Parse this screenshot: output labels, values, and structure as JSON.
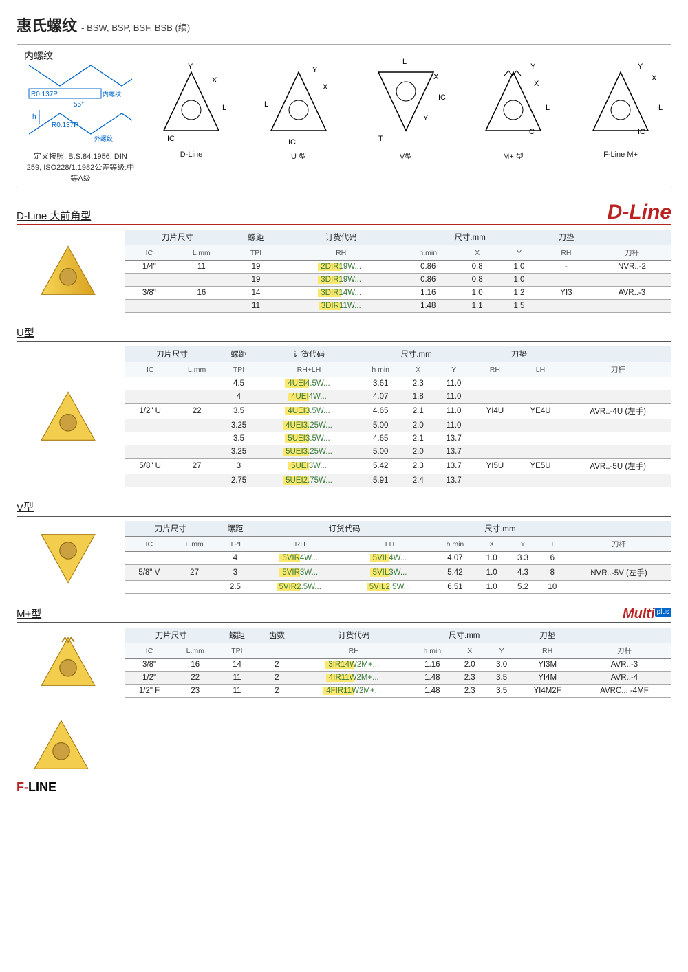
{
  "title": "惠氏螺纹",
  "subtitle": "- BSW, BSP, BSF, BSB (续)",
  "diagram": {
    "header": "内螺纹",
    "profile": {
      "r1": "R0.137P",
      "in": "内螺纹",
      "ang": "55°",
      "r2": "R0.137P",
      "out": "外螺纹",
      "def": "定义按照: B.S.84:1956, DIN 259, ISO228/1:1982公差等级:中等A级"
    },
    "labels": [
      "D-Line",
      "U 型",
      "V型",
      "M+ 型",
      "F-Line M+"
    ]
  },
  "dline": {
    "heading": "D-Line 大前角型",
    "brand": "D-Line",
    "cols1": [
      "刀片尺寸",
      "",
      "螺距",
      "订货代码",
      "",
      "尺寸.mm",
      "",
      "刀垫",
      ""
    ],
    "cols2": [
      "IC",
      "L mm",
      "TPI",
      "RH",
      "h.min",
      "X",
      "Y",
      "RH",
      "刀杆"
    ],
    "rows": [
      {
        "ic": "1/4\"",
        "lmm": "11",
        "tpi": "19",
        "rh": "2DIR19W...",
        "hmin": "0.86",
        "x": "0.8",
        "y": "1.0",
        "pad": "-",
        "bar": "NVR..-2"
      },
      {
        "ic": "",
        "lmm": "",
        "tpi": "19",
        "rh": "3DIR19W...",
        "hmin": "0.86",
        "x": "0.8",
        "y": "1.0",
        "pad": "",
        "bar": ""
      },
      {
        "ic": "3/8\"",
        "lmm": "16",
        "tpi": "14",
        "rh": "3DIR14W...",
        "hmin": "1.16",
        "x": "1.0",
        "y": "1.2",
        "pad": "YI3",
        "bar": "AVR..-3"
      },
      {
        "ic": "",
        "lmm": "",
        "tpi": "11",
        "rh": "3DIR11W...",
        "hmin": "1.48",
        "x": "1.1",
        "y": "1.5",
        "pad": "",
        "bar": ""
      }
    ]
  },
  "utype": {
    "heading": "U型",
    "cols1": [
      "刀片尺寸",
      "",
      "螺距",
      "订货代码",
      "",
      "尺寸.mm",
      "",
      "",
      "刀垫",
      "",
      ""
    ],
    "cols2": [
      "IC",
      "L.mm",
      "TPI",
      "RH+LH",
      "h min",
      "X",
      "Y",
      "RH",
      "LH",
      "刀杆"
    ],
    "rows": [
      {
        "ic": "",
        "lmm": "",
        "tpi": "4.5",
        "code": "4UEI4.5W...",
        "hmin": "3.61",
        "x": "2.3",
        "y": "11.0",
        "rh": "",
        "lh": "",
        "bar": ""
      },
      {
        "ic": "",
        "lmm": "",
        "tpi": "4",
        "code": "4UEI4W...",
        "hmin": "4.07",
        "x": "1.8",
        "y": "11.0",
        "rh": "",
        "lh": "",
        "bar": ""
      },
      {
        "ic": "1/2\" U",
        "lmm": "22",
        "tpi": "3.5",
        "code": "4UEI3.5W...",
        "hmin": "4.65",
        "x": "2.1",
        "y": "11.0",
        "rh": "YI4U",
        "lh": "YE4U",
        "bar": "AVR..-4U (左手)"
      },
      {
        "ic": "",
        "lmm": "",
        "tpi": "3.25",
        "code": "4UEI3.25W...",
        "hmin": "5.00",
        "x": "2.0",
        "y": "11.0",
        "rh": "",
        "lh": "",
        "bar": ""
      },
      {
        "ic": "",
        "lmm": "",
        "tpi": "3.5",
        "code": "5UEI3.5W...",
        "hmin": "4.65",
        "x": "2.1",
        "y": "13.7",
        "rh": "",
        "lh": "",
        "bar": ""
      },
      {
        "ic": "",
        "lmm": "",
        "tpi": "3.25",
        "code": "5UEI3.25W...",
        "hmin": "5.00",
        "x": "2.0",
        "y": "13.7",
        "rh": "",
        "lh": "",
        "bar": ""
      },
      {
        "ic": "5/8\" U",
        "lmm": "27",
        "tpi": "3",
        "code": "5UEI3W...",
        "hmin": "5.42",
        "x": "2.3",
        "y": "13.7",
        "rh": "YI5U",
        "lh": "YE5U",
        "bar": "AVR..-5U (左手)"
      },
      {
        "ic": "",
        "lmm": "",
        "tpi": "2.75",
        "code": "5UEI2.75W...",
        "hmin": "5.91",
        "x": "2.4",
        "y": "13.7",
        "rh": "",
        "lh": "",
        "bar": ""
      }
    ]
  },
  "vtype": {
    "heading": "V型",
    "cols1": [
      "刀片尺寸",
      "",
      "螺距",
      "订货代码",
      "",
      "",
      "尺寸.mm",
      "",
      "",
      ""
    ],
    "cols2": [
      "IC",
      "L.mm",
      "TPI",
      "RH",
      "LH",
      "h min",
      "X",
      "Y",
      "T",
      "刀杆"
    ],
    "rows": [
      {
        "ic": "",
        "lmm": "",
        "tpi": "4",
        "rh": "5VIR4W...",
        "lh": "5VIL4W...",
        "hmin": "4.07",
        "x": "1.0",
        "y": "3.3",
        "t": "6",
        "bar": ""
      },
      {
        "ic": "5/8\" V",
        "lmm": "27",
        "tpi": "3",
        "rh": "5VIR3W...",
        "lh": "5VIL3W...",
        "hmin": "5.42",
        "x": "1.0",
        "y": "4.3",
        "t": "8",
        "bar": "NVR..-5V (左手)"
      },
      {
        "ic": "",
        "lmm": "",
        "tpi": "2.5",
        "rh": "5VIR2.5W...",
        "lh": "5VIL2.5W...",
        "hmin": "6.51",
        "x": "1.0",
        "y": "5.2",
        "t": "10",
        "bar": ""
      }
    ]
  },
  "mtype": {
    "heading": "M+型",
    "brand": "Multi",
    "brand_plus": "plus",
    "cols1": [
      "刀片尺寸",
      "",
      "螺距",
      "齿数",
      "订货代码",
      "",
      "尺寸.mm",
      "",
      "刀垫",
      ""
    ],
    "cols2": [
      "IC",
      "L.mm",
      "TPI",
      "",
      "RH",
      "h min",
      "X",
      "Y",
      "RH",
      "刀杆"
    ],
    "rows": [
      {
        "ic": "3/8\"",
        "lmm": "16",
        "tpi": "14",
        "teeth": "2",
        "rh": "3IR14W2M+...",
        "hmin": "1.16",
        "x": "2.0",
        "y": "3.0",
        "pad": "YI3M",
        "bar": "AVR..-3"
      },
      {
        "ic": "1/2\"",
        "lmm": "22",
        "tpi": "11",
        "teeth": "2",
        "rh": "4IR11W2M+...",
        "hmin": "1.48",
        "x": "2.3",
        "y": "3.5",
        "pad": "YI4M",
        "bar": "AVR..-4"
      },
      {
        "ic": "1/2\" F",
        "lmm": "23",
        "tpi": "11",
        "teeth": "2",
        "rh": "4FIR11W2M+...",
        "hmin": "1.48",
        "x": "2.3",
        "y": "3.5",
        "pad": "YI4M2F",
        "bar": "AVRC... -4MF"
      }
    ]
  },
  "fline_logo": {
    "f": "F-",
    "rest": "LINE"
  }
}
